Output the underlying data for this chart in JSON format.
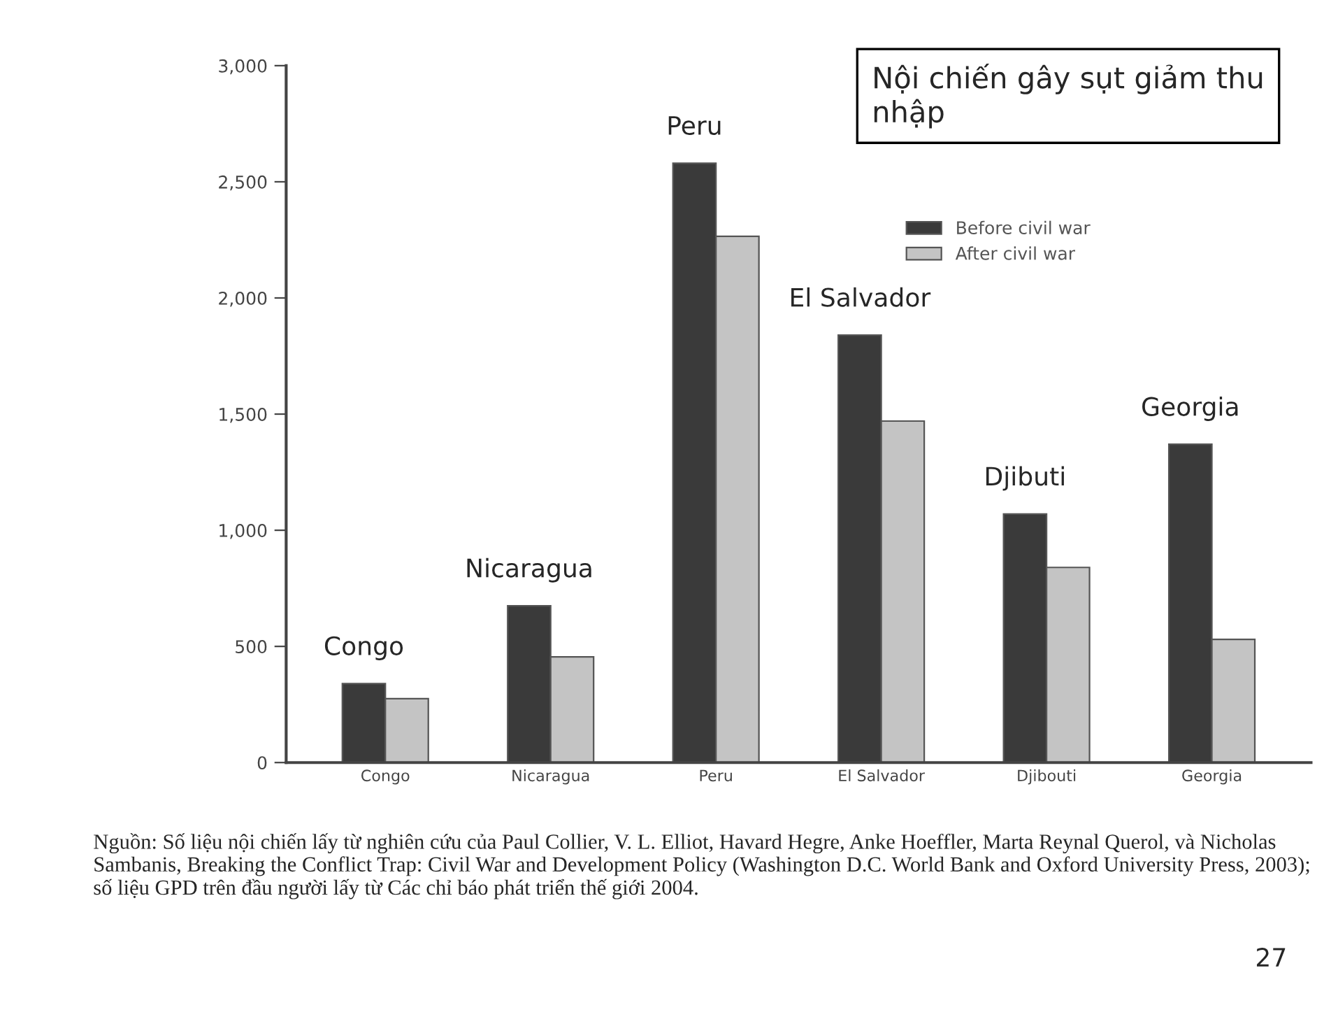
{
  "chart_data": {
    "type": "bar",
    "title": "Nội chiến gây sụt giảm thu nhập",
    "categories": [
      "Congo",
      "Nicaragua",
      "Peru",
      "El Salvador",
      "Djibouti",
      "Georgia"
    ],
    "series": [
      {
        "name": "Before civil war",
        "color": "#3a3a3a",
        "values": [
          340,
          675,
          2580,
          1840,
          1070,
          1370
        ]
      },
      {
        "name": "After civil war",
        "color": "#c4c4c4",
        "values": [
          275,
          455,
          2265,
          1470,
          840,
          530
        ]
      }
    ],
    "ylim": [
      0,
      3000
    ],
    "yticks": [
      {
        "value": 0,
        "label": "0"
      },
      {
        "value": 500,
        "label": "500"
      },
      {
        "value": 1000,
        "label": "1,000"
      },
      {
        "value": 1500,
        "label": "1,500"
      },
      {
        "value": 2000,
        "label": "2,000"
      },
      {
        "value": 2500,
        "label": "2,500"
      },
      {
        "value": 3000,
        "label": "3,000"
      }
    ],
    "grid": false,
    "legend": "top right",
    "annotations": [
      {
        "text": "Congo",
        "x": "Congo",
        "y": 340
      },
      {
        "text": "Nicaragua",
        "x": "Nicaragua",
        "y": 675
      },
      {
        "text": "Peru",
        "x": "Peru",
        "y": 2580
      },
      {
        "text": "El Salvador",
        "x": "El Salvador",
        "y": 1840
      },
      {
        "text": "Djibuti",
        "x": "Djibouti",
        "y": 1070
      },
      {
        "text": "Georgia",
        "x": "Georgia",
        "y": 1370
      },
      "Nguồn: Số liệu nội chiến lấy từ nghiên cứu của Paul Collier, V. L. Elliot, Havard Hegre, Anke Hoeffler, Marta Reynal Querol, và Nicholas Sambanis, Breaking the Conflict Trap: Civil War and Development Policy (Washington D.C. World Bank and Oxford University Press, 2003); số liệu GPD trên đầu người lấy từ Các chỉ báo phát triển thế giới 2004.",
      "27"
    ]
  }
}
